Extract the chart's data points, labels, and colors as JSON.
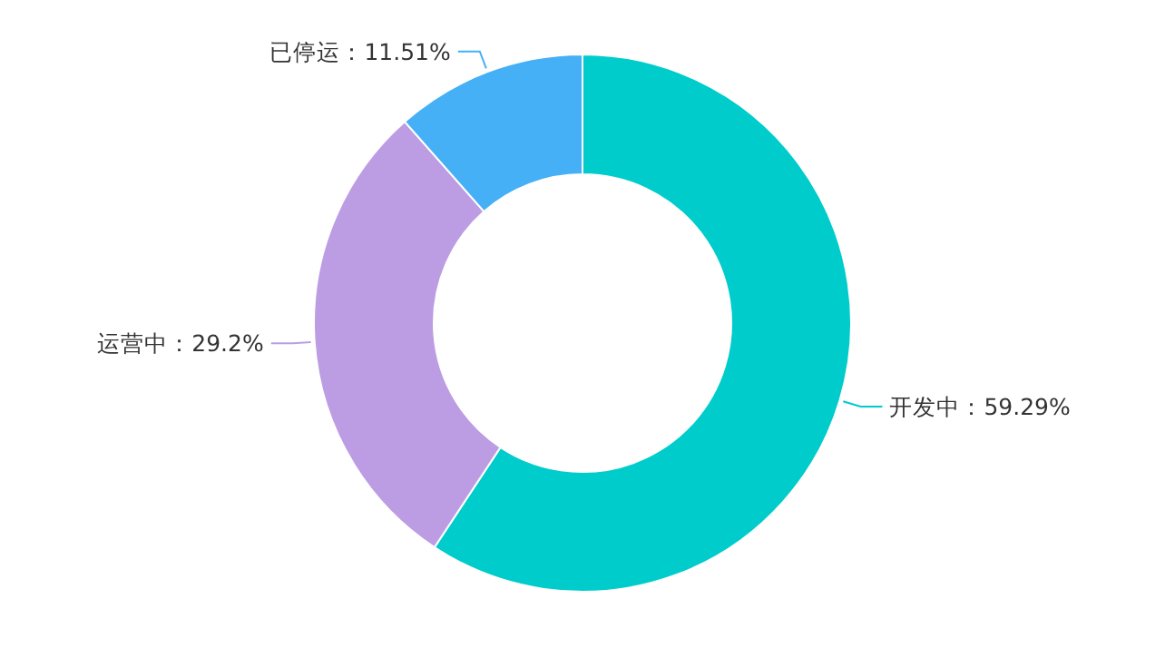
{
  "chart_data": {
    "type": "donut",
    "categories": [
      "开发中",
      "运营中",
      "已停运"
    ],
    "values": [
      59.29,
      29.2,
      11.51
    ],
    "colors": [
      "#00cccc",
      "#bc9de3",
      "#45b0f6"
    ],
    "value_labels": [
      "：59.29%",
      "：29.2%",
      "：11.51%"
    ]
  }
}
